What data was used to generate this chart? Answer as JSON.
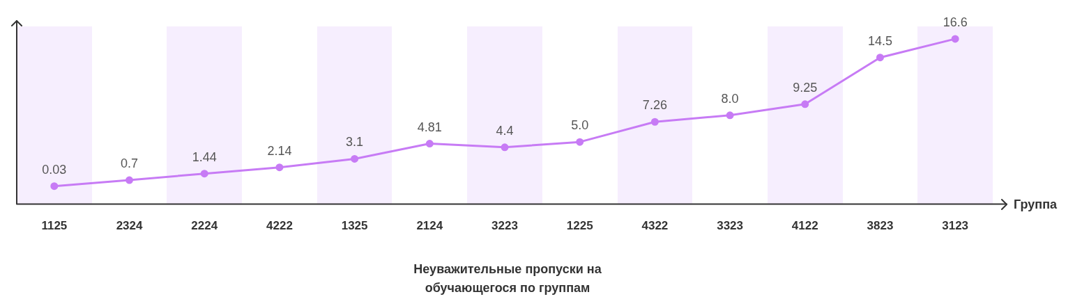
{
  "chart_data": {
    "type": "line",
    "title": "Неуважительные пропуски на обучающегося по группам",
    "xlabel": "Группа",
    "categories": [
      "1125",
      "2324",
      "2224",
      "4222",
      "1325",
      "2124",
      "3223",
      "1225",
      "4322",
      "3323",
      "4122",
      "3823",
      "3123"
    ],
    "values": [
      0.03,
      0.7,
      1.44,
      2.14,
      3.1,
      4.81,
      4.4,
      5.0,
      7.26,
      8.0,
      9.25,
      14.5,
      16.6
    ],
    "value_labels": [
      "0.03",
      "0.7",
      "1.44",
      "2.14",
      "3.1",
      "4.81",
      "4.4",
      "5.0",
      "7.26",
      "8.0",
      "9.25",
      "14.5",
      "16.6"
    ],
    "color": "#c77bf5",
    "marker": "circle",
    "line_style": "solid",
    "grid": false,
    "legend": false
  }
}
